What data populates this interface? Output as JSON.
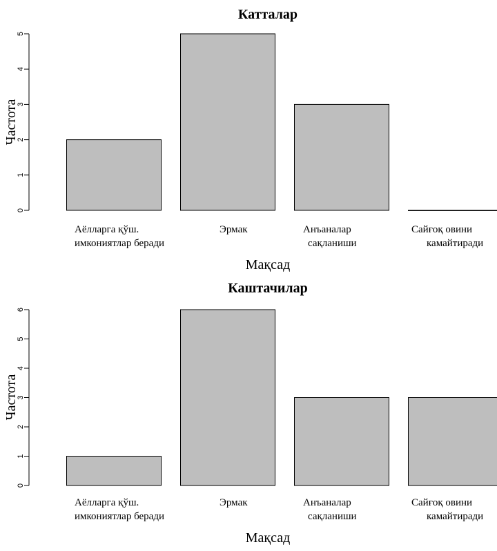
{
  "chart_data": [
    {
      "type": "bar",
      "title": "Катталар",
      "xlabel": "Мақсад",
      "ylabel": "Частота",
      "categories": [
        [
          "Аёлларга қўш.",
          "имкониятлар беради"
        ],
        [
          "Эрмак"
        ],
        [
          "Анъаналар",
          "сақланиши"
        ],
        [
          "Сайғоқ овини",
          "камайтиради"
        ]
      ],
      "values": [
        2,
        5,
        3,
        0
      ],
      "ylim": [
        0,
        5
      ],
      "yticks": [
        0,
        1,
        2,
        3,
        4,
        5
      ],
      "bar_color": "#bebebe",
      "grid": false
    },
    {
      "type": "bar",
      "title": "Каштачилар",
      "xlabel": "Мақсад",
      "ylabel": "Частота",
      "categories": [
        [
          "Аёлларга қўш.",
          "имкониятлар беради"
        ],
        [
          "Эрмак"
        ],
        [
          "Анъаналар",
          "сақланиши"
        ],
        [
          "Сайғоқ овини",
          "камайтиради"
        ]
      ],
      "values": [
        1,
        6,
        3,
        3
      ],
      "ylim": [
        0,
        6
      ],
      "yticks": [
        0,
        1,
        2,
        3,
        4,
        5,
        6
      ],
      "bar_color": "#bebebe",
      "grid": false
    }
  ]
}
